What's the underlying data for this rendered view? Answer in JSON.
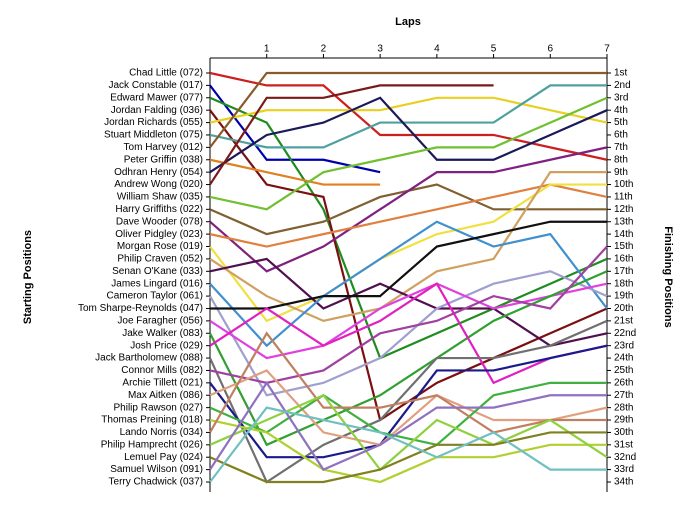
{
  "chart_data": {
    "type": "line",
    "x_label": "Laps",
    "y_label": "Starting Positions",
    "y2_label": "Finishing Positions",
    "x": [
      0,
      1,
      2,
      3,
      4,
      5,
      6,
      7
    ],
    "xlim": [
      0,
      7
    ],
    "xticks": [
      1,
      2,
      3,
      4,
      5,
      6,
      7
    ],
    "ylim": [
      1,
      34
    ],
    "y2lim": [
      1,
      34
    ],
    "y2ticks": [
      {
        "value": 1,
        "label": "1st"
      },
      {
        "value": 2,
        "label": "2nd"
      },
      {
        "value": 3,
        "label": "3rd"
      },
      {
        "value": 4,
        "label": "4th"
      },
      {
        "value": 5,
        "label": "5th"
      },
      {
        "value": 6,
        "label": "6th"
      },
      {
        "value": 7,
        "label": "7th"
      },
      {
        "value": 8,
        "label": "8th"
      },
      {
        "value": 9,
        "label": "9th"
      },
      {
        "value": 10,
        "label": "10th"
      },
      {
        "value": 11,
        "label": "11th"
      },
      {
        "value": 12,
        "label": "12th"
      },
      {
        "value": 13,
        "label": "13th"
      },
      {
        "value": 14,
        "label": "14th"
      },
      {
        "value": 15,
        "label": "15th"
      },
      {
        "value": 16,
        "label": "16th"
      },
      {
        "value": 17,
        "label": "17th"
      },
      {
        "value": 18,
        "label": "18th"
      },
      {
        "value": 19,
        "label": "19th"
      },
      {
        "value": 20,
        "label": "20th"
      },
      {
        "value": 21,
        "label": "21st"
      },
      {
        "value": 22,
        "label": "22nd"
      },
      {
        "value": 23,
        "label": "23rd"
      },
      {
        "value": 24,
        "label": "24th"
      },
      {
        "value": 25,
        "label": "25th"
      },
      {
        "value": 26,
        "label": "26th"
      },
      {
        "value": 27,
        "label": "27th"
      },
      {
        "value": 28,
        "label": "28th"
      },
      {
        "value": 29,
        "label": "29th"
      },
      {
        "value": 30,
        "label": "30th"
      },
      {
        "value": 31,
        "label": "31st"
      },
      {
        "value": 32,
        "label": "32nd"
      },
      {
        "value": 33,
        "label": "33rd"
      },
      {
        "value": 34,
        "label": "34th"
      }
    ],
    "series": [
      {
        "name": "Chad Little (072)",
        "color": "#cc2020",
        "values": [
          1,
          2,
          2,
          6,
          6,
          6,
          7,
          8
        ]
      },
      {
        "name": "Jack Constable (017)",
        "color": "#0000aa",
        "values": [
          2,
          8,
          8,
          9,
          null,
          null,
          null,
          null
        ]
      },
      {
        "name": "Edward Mawer (077)",
        "color": "#1e8c1e",
        "values": [
          3,
          5,
          12,
          24,
          22,
          20,
          18,
          16
        ]
      },
      {
        "name": "Jordan Falding (036)",
        "color": "#7a1010",
        "values": [
          4,
          10,
          11,
          29,
          26,
          24,
          22,
          20
        ]
      },
      {
        "name": "Jordan Richards (055)",
        "color": "#e8d020",
        "values": [
          5,
          4,
          4,
          4,
          3,
          3,
          4,
          5
        ]
      },
      {
        "name": "Stuart Middleton (075)",
        "color": "#50a0a0",
        "values": [
          6,
          7,
          7,
          5,
          5,
          5,
          2,
          2
        ]
      },
      {
        "name": "Tom Harvey (012)",
        "color": "#8b5a2b",
        "values": [
          7,
          1,
          1,
          1,
          1,
          1,
          1,
          1
        ]
      },
      {
        "name": "Peter Griffin (038)",
        "color": "#e08020",
        "values": [
          8,
          9,
          10,
          10,
          null,
          null,
          null,
          null
        ]
      },
      {
        "name": "Odhran Henry (054)",
        "color": "#1a1a5a",
        "values": [
          9,
          6,
          5,
          3,
          8,
          8,
          6,
          4
        ]
      },
      {
        "name": "Andrew Wong (020)",
        "color": "#7a1a1a",
        "values": [
          10,
          3,
          3,
          2,
          2,
          2,
          null,
          null
        ]
      },
      {
        "name": "William Shaw (035)",
        "color": "#70c030",
        "values": [
          11,
          12,
          9,
          8,
          7,
          7,
          5,
          3
        ]
      },
      {
        "name": "Harry Griffiths (022)",
        "color": "#806030",
        "values": [
          12,
          14,
          13,
          11,
          10,
          12,
          12,
          12
        ]
      },
      {
        "name": "Dave Wooder (078)",
        "color": "#802080",
        "values": [
          13,
          17,
          15,
          12,
          9,
          9,
          8,
          7
        ]
      },
      {
        "name": "Oliver Pidgley (023)",
        "color": "#e08040",
        "values": [
          14,
          15,
          14,
          13,
          12,
          11,
          10,
          11
        ]
      },
      {
        "name": "Morgan Rose (019)",
        "color": "#f0e040",
        "values": [
          15,
          21,
          19,
          16,
          14,
          13,
          10,
          10
        ]
      },
      {
        "name": "Philip Craven (052)",
        "color": "#d0a060",
        "values": [
          16,
          19,
          21,
          20,
          17,
          16,
          9,
          9
        ]
      },
      {
        "name": "Senan O'Kane (033)",
        "color": "#501050",
        "values": [
          17,
          16,
          20,
          18,
          20,
          20,
          23,
          22
        ]
      },
      {
        "name": "James Lingard (016)",
        "color": "#4090d0",
        "values": [
          18,
          23,
          19,
          16,
          13,
          15,
          14,
          20
        ]
      },
      {
        "name": "Cameron Taylor (061)",
        "color": "#a0a0d0",
        "values": [
          19,
          27,
          26,
          24,
          20,
          18,
          17,
          19
        ]
      },
      {
        "name": "Tom Sharpe-Reynolds (047)",
        "color": "#101010",
        "values": [
          20,
          20,
          19,
          19,
          15,
          14,
          13,
          13
        ]
      },
      {
        "name": "Joe Faragher (056)",
        "color": "#e040e0",
        "values": [
          21,
          24,
          23,
          20,
          18,
          20,
          19,
          18
        ]
      },
      {
        "name": "Jake Walker (083)",
        "color": "#30a030",
        "values": [
          22,
          31,
          29,
          27,
          24,
          21,
          19,
          17
        ]
      },
      {
        "name": "Josh Price (029)",
        "color": "#e020c0",
        "values": [
          23,
          20,
          23,
          21,
          18,
          26,
          24,
          23
        ]
      },
      {
        "name": "Jack Bartholomew (088)",
        "color": "#707070",
        "values": [
          24,
          34,
          31,
          29,
          24,
          24,
          23,
          21
        ]
      },
      {
        "name": "Connor Mills (082)",
        "color": "#a040a0",
        "values": [
          25,
          26,
          25,
          22,
          21,
          19,
          20,
          15
        ]
      },
      {
        "name": "Archie Tillett (021)",
        "color": "#1a1a8a",
        "values": [
          26,
          32,
          32,
          31,
          25,
          25,
          24,
          23
        ]
      },
      {
        "name": "Max Aitken (086)",
        "color": "#e0a080",
        "values": [
          27,
          25,
          30,
          31,
          27,
          29,
          29,
          28
        ]
      },
      {
        "name": "Philip Rawson (027)",
        "color": "#40b040",
        "values": [
          28,
          30,
          27,
          30,
          31,
          27,
          26,
          26
        ]
      },
      {
        "name": "Thomas Preining (018)",
        "color": "#b0d030",
        "values": [
          29,
          30,
          33,
          34,
          32,
          32,
          31,
          31
        ]
      },
      {
        "name": "Lando Norris (034)",
        "color": "#c08060",
        "values": [
          30,
          22,
          28,
          28,
          27,
          30,
          29,
          29
        ]
      },
      {
        "name": "Philip Hamprecht (026)",
        "color": "#8fd040",
        "values": [
          31,
          29,
          27,
          33,
          29,
          31,
          29,
          32
        ]
      },
      {
        "name": "Lemuel Pay (024)",
        "color": "#808020",
        "values": [
          32,
          34,
          34,
          33,
          31,
          31,
          30,
          30
        ]
      },
      {
        "name": "Samuel Wilson (091)",
        "color": "#9070c0",
        "values": [
          33,
          26,
          33,
          31,
          28,
          28,
          27,
          27
        ]
      },
      {
        "name": "Terry Chadwick (037)",
        "color": "#70c0c0",
        "values": [
          34,
          28,
          29,
          30,
          32,
          30,
          33,
          33
        ]
      }
    ]
  }
}
